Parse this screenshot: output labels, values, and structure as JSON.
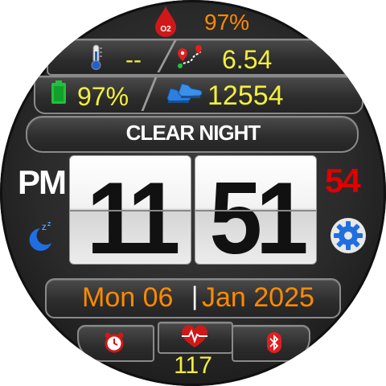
{
  "oxygen": {
    "value": "97%",
    "icon": "blood-drop-o2-icon",
    "icon_text": "O2"
  },
  "temperature": {
    "value": "--",
    "icon": "thermometer-icon"
  },
  "distance": {
    "value": "6.54",
    "icon": "route-pin-icon"
  },
  "battery": {
    "value": "97%",
    "icon": "battery-icon"
  },
  "steps": {
    "value": "12554",
    "icon": "shoes-icon"
  },
  "weather": {
    "label": "CLEAR NIGHT"
  },
  "time": {
    "ampm": "PM",
    "hours": "11",
    "minutes": "51",
    "seconds": "54"
  },
  "date": {
    "day": "Mon 06",
    "separator": "|",
    "month_year": "Jan 2025"
  },
  "heart_rate": {
    "value": "117",
    "icon": "heart-pulse-icon"
  },
  "bottom": {
    "alarm_icon": "alarm-clock-icon",
    "bluetooth_icon": "bluetooth-icon"
  },
  "colors": {
    "accent_orange": "#ff8a00",
    "accent_yellow": "#f3ef3c",
    "seconds_red": "#e00000",
    "icon_blue": "#1f6fe0"
  }
}
